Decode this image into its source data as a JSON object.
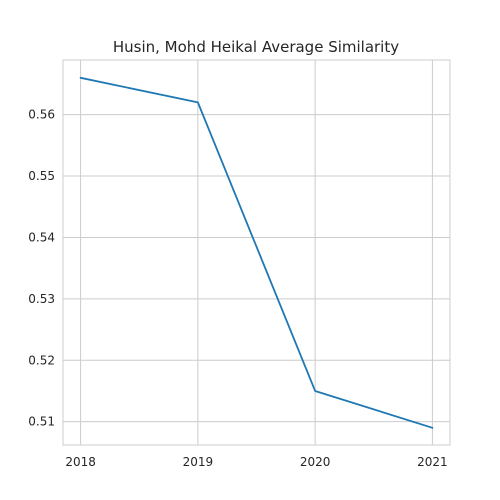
{
  "chart_data": {
    "type": "line",
    "title": "Husin, Mohd Heikal Average Similarity",
    "xlabel": "",
    "ylabel": "",
    "x": [
      2018,
      2019,
      2020,
      2021
    ],
    "x_tick_labels": [
      "2018",
      "2019",
      "2020",
      "2021"
    ],
    "y_ticks": [
      0.51,
      0.52,
      0.53,
      0.54,
      0.55,
      0.56
    ],
    "y_tick_labels": [
      "0.51",
      "0.52",
      "0.53",
      "0.54",
      "0.55",
      "0.56"
    ],
    "xlim": [
      2017.85,
      2021.15
    ],
    "ylim": [
      0.5062,
      0.5689
    ],
    "grid": true,
    "legend": "none",
    "series": [
      {
        "color": "#1f77b4",
        "values": [
          0.566,
          0.562,
          0.515,
          0.509
        ]
      }
    ]
  }
}
